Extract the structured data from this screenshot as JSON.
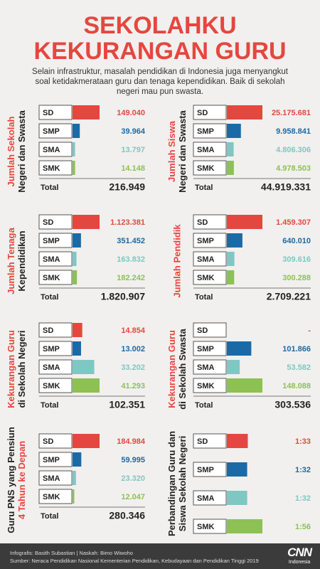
{
  "header": {
    "title_lines": [
      "SEKOLAHKU",
      "KEKURANGAN GURU"
    ],
    "intro": "Selain infrastruktur, masalah pendidikan di Indonesia juga menyangkut soal ketidakmerataan guru dan tenaga kependidikan. Baik di sekolah negeri mau pun swasta."
  },
  "chart_data": [
    {
      "type": "bar",
      "orientation": "horizontal",
      "title_lines": [
        {
          "text": "Jumlah Sekolah",
          "color": "#e4473f"
        },
        {
          "text": "Negeri dan Swasta",
          "color": "#222222"
        }
      ],
      "categories": [
        "SD",
        "SMP",
        "SMA",
        "SMK"
      ],
      "colors": [
        "#e4473f",
        "#1b6aa8",
        "#7fc7c2",
        "#8dc153"
      ],
      "values": [
        149040,
        39964,
        13797,
        14148
      ],
      "value_labels": [
        "149.040",
        "39.964",
        "13.797",
        "14.148"
      ],
      "total_name": "Total",
      "total": 216949,
      "total_label": "216.949"
    },
    {
      "type": "bar",
      "orientation": "horizontal",
      "title_lines": [
        {
          "text": "Jumlah Siswa",
          "color": "#e4473f"
        },
        {
          "text": "Negeri dan Swasta",
          "color": "#222222"
        }
      ],
      "categories": [
        "SD",
        "SMP",
        "SMA",
        "SMK"
      ],
      "colors": [
        "#e4473f",
        "#1b6aa8",
        "#7fc7c2",
        "#8dc153"
      ],
      "values": [
        25175681,
        9958841,
        4806306,
        4978503
      ],
      "value_labels": [
        "25.175.681",
        "9.958.841",
        "4.806.306",
        "4.978.503"
      ],
      "total_name": "Total",
      "total": 44919331,
      "total_label": "44.919.331"
    },
    {
      "type": "bar",
      "orientation": "horizontal",
      "title_lines": [
        {
          "text": "Jumlah Tenaga",
          "color": "#e4473f"
        },
        {
          "text": "Kependidikan",
          "color": "#222222"
        }
      ],
      "categories": [
        "SD",
        "SMP",
        "SMA",
        "SMK"
      ],
      "colors": [
        "#e4473f",
        "#1b6aa8",
        "#7fc7c2",
        "#8dc153"
      ],
      "values": [
        1123381,
        351452,
        163832,
        182242
      ],
      "value_labels": [
        "1.123.381",
        "351.452",
        "163.832",
        "182.242"
      ],
      "total_name": "Total",
      "total": 1820907,
      "total_label": "1.820.907"
    },
    {
      "type": "bar",
      "orientation": "horizontal",
      "title_lines": [
        {
          "text": "Jumlah Pendidik",
          "color": "#e4473f"
        }
      ],
      "categories": [
        "SD",
        "SMP",
        "SMA",
        "SMK"
      ],
      "colors": [
        "#e4473f",
        "#1b6aa8",
        "#7fc7c2",
        "#8dc153"
      ],
      "values": [
        1459307,
        640010,
        309616,
        300288
      ],
      "value_labels": [
        "1.459.307",
        "640.010",
        "309.616",
        "300.288"
      ],
      "total_name": "Total",
      "total": 2709221,
      "total_label": "2.709.221"
    },
    {
      "type": "bar",
      "orientation": "horizontal",
      "title_lines": [
        {
          "text": "Kekurangan Guru",
          "color": "#e4473f"
        },
        {
          "text": "di Sekolah Negeri",
          "color": "#222222"
        }
      ],
      "categories": [
        "SD",
        "SMP",
        "SMA",
        "SMK"
      ],
      "colors": [
        "#e4473f",
        "#1b6aa8",
        "#7fc7c2",
        "#8dc153"
      ],
      "values": [
        14854,
        13002,
        33202,
        41293
      ],
      "value_labels": [
        "14.854",
        "13.002",
        "33.202",
        "41.293"
      ],
      "total_name": "Total",
      "total": 102351,
      "total_label": "102.351"
    },
    {
      "type": "bar",
      "orientation": "horizontal",
      "title_lines": [
        {
          "text": "Kekurangan Guru",
          "color": "#e4473f"
        },
        {
          "text": "di Sekolah Swasta",
          "color": "#222222"
        }
      ],
      "categories": [
        "SD",
        "SMP",
        "SMA",
        "SMK"
      ],
      "colors": [
        "#e4473f",
        "#1b6aa8",
        "#7fc7c2",
        "#8dc153"
      ],
      "values": [
        null,
        101866,
        53582,
        148088
      ],
      "value_labels": [
        "-",
        "101.866",
        "53.582",
        "148.088"
      ],
      "total_name": "Total",
      "total": 303536,
      "total_label": "303.536"
    },
    {
      "type": "bar",
      "orientation": "horizontal",
      "title_lines": [
        {
          "text": "Guru PNS yang Pensiun",
          "color": "#222222"
        },
        {
          "text": "4 Tahun ke Depan",
          "color": "#e4473f"
        }
      ],
      "categories": [
        "SD",
        "SMP",
        "SMA",
        "SMK"
      ],
      "colors": [
        "#e4473f",
        "#1b6aa8",
        "#7fc7c2",
        "#8dc153"
      ],
      "values": [
        184984,
        59995,
        23320,
        12047
      ],
      "value_labels": [
        "184.984",
        "59.995",
        "23.320",
        "12.047"
      ],
      "total_name": "Total",
      "total": 280346,
      "total_label": "280.346"
    },
    {
      "type": "bar",
      "orientation": "horizontal",
      "title_lines": [
        {
          "text": "Perbandingan Guru dan",
          "color": "#222222"
        },
        {
          "text": "Siswa Sekolah Negeri",
          "color": "#222222"
        }
      ],
      "categories": [
        "SD",
        "SMP",
        "SMA",
        "SMK"
      ],
      "colors": [
        "#e4473f",
        "#1b6aa8",
        "#7fc7c2",
        "#8dc153"
      ],
      "values": [
        33,
        32,
        32,
        56
      ],
      "value_labels": [
        "1:33",
        "1:32",
        "1:32",
        "1:56"
      ]
    }
  ],
  "footer": {
    "credits": "Infografis: Basith Subastian | Naskah: Bimo Wiwoho",
    "source": "Sumber: Neraca Pendidikan Nasional Kementerian Pendidikan, Kebudayaan dan Pendidikan Tinggi 2019",
    "logo": "CNN",
    "logo_sub": "Indonesia"
  }
}
